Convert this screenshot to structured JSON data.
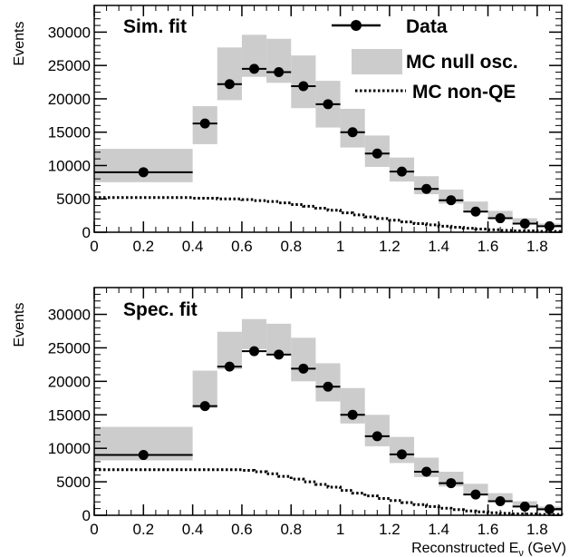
{
  "chart_data": [
    {
      "type": "histogram",
      "title": "Sim. fit",
      "ylabel": "Events",
      "xlabel": "",
      "xlim": [
        0,
        1.9
      ],
      "ylim": [
        0,
        34000
      ],
      "x_ticks": [
        "0",
        "0.2",
        "0.4",
        "0.6",
        "0.8",
        "1",
        "1.2",
        "1.4",
        "1.6",
        "1.8"
      ],
      "y_ticks": [
        "0",
        "5000",
        "10000",
        "15000",
        "20000",
        "25000",
        "30000"
      ],
      "legend": [
        "Data",
        "MC null osc.",
        "MC non-QE"
      ],
      "legend_position": "top-right",
      "series": [
        {
          "name": "Data",
          "style": "points",
          "bins": [
            [
              0.0,
              0.4
            ],
            [
              0.4,
              0.5
            ],
            [
              0.5,
              0.6
            ],
            [
              0.6,
              0.7
            ],
            [
              0.7,
              0.8
            ],
            [
              0.8,
              0.9
            ],
            [
              0.9,
              1.0
            ],
            [
              1.0,
              1.1
            ],
            [
              1.1,
              1.2
            ],
            [
              1.2,
              1.3
            ],
            [
              1.3,
              1.4
            ],
            [
              1.4,
              1.5
            ],
            [
              1.5,
              1.6
            ],
            [
              1.6,
              1.7
            ],
            [
              1.7,
              1.8
            ],
            [
              1.8,
              1.9
            ]
          ],
          "x": [
            0.2,
            0.45,
            0.55,
            0.65,
            0.75,
            0.85,
            0.95,
            1.05,
            1.15,
            1.25,
            1.35,
            1.45,
            1.55,
            1.65,
            1.75,
            1.85
          ],
          "values": [
            9000,
            16300,
            22200,
            24500,
            24000,
            21900,
            19200,
            15000,
            11800,
            9100,
            6500,
            4800,
            3100,
            2100,
            1300,
            900
          ]
        },
        {
          "name": "MC null osc.",
          "style": "band",
          "bins": [
            [
              0.0,
              0.4
            ],
            [
              0.4,
              0.5
            ],
            [
              0.5,
              0.6
            ],
            [
              0.6,
              0.7
            ],
            [
              0.7,
              0.8
            ],
            [
              0.8,
              0.9
            ],
            [
              0.9,
              1.0
            ],
            [
              1.0,
              1.1
            ],
            [
              1.1,
              1.2
            ],
            [
              1.2,
              1.3
            ],
            [
              1.3,
              1.4
            ],
            [
              1.4,
              1.5
            ],
            [
              1.5,
              1.6
            ],
            [
              1.6,
              1.7
            ],
            [
              1.7,
              1.8
            ],
            [
              1.8,
              1.9
            ]
          ],
          "low": [
            7500,
            13200,
            19800,
            23300,
            22400,
            18600,
            15700,
            12700,
            9800,
            7600,
            5700,
            4300,
            3000,
            2100,
            1400,
            800
          ],
          "high": [
            12500,
            18900,
            27700,
            29600,
            29000,
            26500,
            22700,
            18500,
            14500,
            11200,
            8400,
            6400,
            4600,
            3200,
            2100,
            1300
          ]
        },
        {
          "name": "MC non-QE",
          "style": "dotted-step",
          "x": [
            0.0,
            0.4,
            0.5,
            0.6,
            0.65,
            0.7,
            0.75,
            0.8,
            0.85,
            0.9,
            0.95,
            1.0,
            1.05,
            1.1,
            1.15,
            1.2,
            1.25,
            1.3,
            1.35,
            1.4,
            1.45,
            1.5,
            1.55,
            1.6,
            1.65,
            1.7,
            1.8,
            1.9
          ],
          "values": [
            5200,
            5100,
            5000,
            4900,
            4750,
            4600,
            4400,
            4150,
            3900,
            3600,
            3300,
            2900,
            2600,
            2300,
            2050,
            1800,
            1550,
            1300,
            1100,
            900,
            750,
            600,
            480,
            380,
            280,
            200,
            120,
            80
          ]
        }
      ]
    },
    {
      "type": "histogram",
      "title": "Spec. fit",
      "ylabel": "Events",
      "xlabel": "Reconstructed E",
      "xlabel_sub": "ν",
      "xlabel_unit": " (GeV)",
      "xlim": [
        0,
        1.9
      ],
      "ylim": [
        0,
        34000
      ],
      "x_ticks": [
        "0",
        "0.2",
        "0.4",
        "0.6",
        "0.8",
        "1",
        "1.2",
        "1.4",
        "1.6",
        "1.8"
      ],
      "y_ticks": [
        "0",
        "5000",
        "10000",
        "15000",
        "20000",
        "25000",
        "30000"
      ],
      "series": [
        {
          "name": "Data",
          "style": "points",
          "bins": [
            [
              0.0,
              0.4
            ],
            [
              0.4,
              0.5
            ],
            [
              0.5,
              0.6
            ],
            [
              0.6,
              0.7
            ],
            [
              0.7,
              0.8
            ],
            [
              0.8,
              0.9
            ],
            [
              0.9,
              1.0
            ],
            [
              1.0,
              1.1
            ],
            [
              1.1,
              1.2
            ],
            [
              1.2,
              1.3
            ],
            [
              1.3,
              1.4
            ],
            [
              1.4,
              1.5
            ],
            [
              1.5,
              1.6
            ],
            [
              1.6,
              1.7
            ],
            [
              1.7,
              1.8
            ],
            [
              1.8,
              1.9
            ]
          ],
          "x": [
            0.2,
            0.45,
            0.55,
            0.65,
            0.75,
            0.85,
            0.95,
            1.05,
            1.15,
            1.25,
            1.35,
            1.45,
            1.55,
            1.65,
            1.75,
            1.85
          ],
          "values": [
            9000,
            16300,
            22200,
            24500,
            24000,
            21900,
            19200,
            15000,
            11800,
            9100,
            6500,
            4800,
            3100,
            2100,
            1300,
            900
          ]
        },
        {
          "name": "MC null osc.",
          "style": "band",
          "bins": [
            [
              0.0,
              0.4
            ],
            [
              0.4,
              0.5
            ],
            [
              0.5,
              0.6
            ],
            [
              0.6,
              0.7
            ],
            [
              0.7,
              0.8
            ],
            [
              0.8,
              0.9
            ],
            [
              0.9,
              1.0
            ],
            [
              1.0,
              1.1
            ],
            [
              1.1,
              1.2
            ],
            [
              1.2,
              1.3
            ],
            [
              1.3,
              1.4
            ],
            [
              1.4,
              1.5
            ],
            [
              1.5,
              1.6
            ],
            [
              1.6,
              1.7
            ],
            [
              1.7,
              1.8
            ],
            [
              1.8,
              1.9
            ]
          ],
          "low": [
            8200,
            16000,
            21800,
            24800,
            24000,
            20000,
            17000,
            13700,
            10300,
            7800,
            5700,
            4300,
            3000,
            2000,
            1300,
            700
          ],
          "high": [
            13200,
            21600,
            27400,
            29300,
            28600,
            26500,
            22700,
            19000,
            15000,
            11700,
            8600,
            6500,
            4700,
            3300,
            2100,
            1300
          ]
        },
        {
          "name": "MC non-QE",
          "style": "dotted-step",
          "x": [
            0.0,
            0.4,
            0.5,
            0.6,
            0.65,
            0.7,
            0.75,
            0.8,
            0.85,
            0.9,
            0.95,
            1.0,
            1.05,
            1.1,
            1.15,
            1.2,
            1.25,
            1.3,
            1.35,
            1.4,
            1.45,
            1.5,
            1.55,
            1.6,
            1.65,
            1.7,
            1.8,
            1.9
          ],
          "values": [
            6800,
            6800,
            6800,
            6700,
            6500,
            6200,
            5800,
            5400,
            5000,
            4600,
            4200,
            3700,
            3300,
            2900,
            2500,
            2200,
            1900,
            1600,
            1300,
            1050,
            850,
            650,
            500,
            380,
            280,
            200,
            120,
            80
          ]
        }
      ]
    }
  ]
}
